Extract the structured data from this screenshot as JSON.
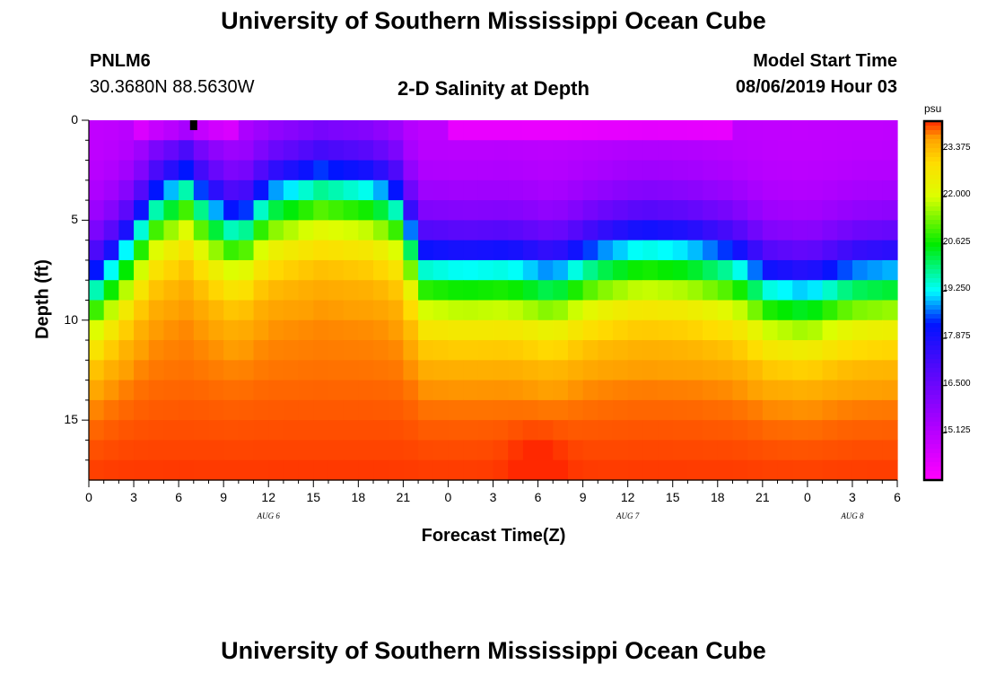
{
  "page": {
    "title_top": "University of Southern Mississippi Ocean Cube",
    "title_bottom": "University of Southern Mississippi Ocean Cube",
    "station": {
      "name": "PNLM6",
      "coordinates": "30.3680N 88.5630W"
    },
    "plot_title": "2-D Salinity at Depth",
    "model_start": {
      "label": "Model Start Time",
      "value": "08/06/2019 Hour 03"
    }
  },
  "chart_data": {
    "type": "heatmap",
    "title": "2-D Salinity at Depth",
    "xlabel": "Forecast Time(Z)",
    "ylabel": "Depth (ft)",
    "x_range_hours": [
      0,
      54
    ],
    "y_range_ft": [
      0,
      18
    ],
    "x_ticks": [
      {
        "h": 0,
        "label": "0"
      },
      {
        "h": 3,
        "label": "3"
      },
      {
        "h": 6,
        "label": "6"
      },
      {
        "h": 9,
        "label": "9"
      },
      {
        "h": 12,
        "label": "12"
      },
      {
        "h": 15,
        "label": "15"
      },
      {
        "h": 18,
        "label": "18"
      },
      {
        "h": 21,
        "label": "21"
      },
      {
        "h": 24,
        "label": "0"
      },
      {
        "h": 27,
        "label": "3"
      },
      {
        "h": 30,
        "label": "6"
      },
      {
        "h": 33,
        "label": "9"
      },
      {
        "h": 36,
        "label": "12"
      },
      {
        "h": 39,
        "label": "15"
      },
      {
        "h": 42,
        "label": "18"
      },
      {
        "h": 45,
        "label": "21"
      },
      {
        "h": 48,
        "label": "0"
      },
      {
        "h": 51,
        "label": "3"
      },
      {
        "h": 54,
        "label": "6"
      }
    ],
    "y_ticks": [
      {
        "d": 0,
        "label": "0"
      },
      {
        "d": 5,
        "label": "5"
      },
      {
        "d": 10,
        "label": "10"
      },
      {
        "d": 15,
        "label": "15"
      }
    ],
    "date_labels": [
      {
        "h": 12,
        "label": "AUG 6"
      },
      {
        "h": 36,
        "label": "AUG 7"
      },
      {
        "h": 51,
        "label": "AUG 8"
      }
    ],
    "colorbar": {
      "unit": "psu",
      "min": 13.75,
      "max": 24.2,
      "ticks": [
        "23.375",
        "22.000",
        "20.625",
        "19.250",
        "17.875",
        "16.500",
        "15.125"
      ]
    },
    "grid": {
      "nx": 54,
      "nz": 18,
      "surface_salinity": 14.9,
      "bottom_salinity": 23.9,
      "bottom_peak": {
        "h": 30,
        "d": 17,
        "value": 24.1
      },
      "halocline_ft": [
        {
          "h": 0,
          "d": 8.7
        },
        {
          "h": 2,
          "d": 7.2
        },
        {
          "h": 4.5,
          "d": 4.3
        },
        {
          "h": 6.5,
          "d": 3.3
        },
        {
          "h": 8,
          "d": 4.6
        },
        {
          "h": 10,
          "d": 5.6
        },
        {
          "h": 12,
          "d": 4.0
        },
        {
          "h": 15.5,
          "d": 3.2
        },
        {
          "h": 19,
          "d": 3.6
        },
        {
          "h": 21,
          "d": 4.6
        },
        {
          "h": 22,
          "d": 7.4
        },
        {
          "h": 25,
          "d": 7.6
        },
        {
          "h": 28,
          "d": 7.5
        },
        {
          "h": 31,
          "d": 8.0
        },
        {
          "h": 34,
          "d": 7.0
        },
        {
          "h": 37,
          "d": 6.5
        },
        {
          "h": 40,
          "d": 6.7
        },
        {
          "h": 43,
          "d": 7.3
        },
        {
          "h": 45.5,
          "d": 8.5
        },
        {
          "h": 48,
          "d": 8.8
        },
        {
          "h": 51,
          "d": 8.0
        },
        {
          "h": 54,
          "d": 7.8
        }
      ],
      "marker": {
        "h": 7,
        "d": 0.2
      }
    }
  }
}
